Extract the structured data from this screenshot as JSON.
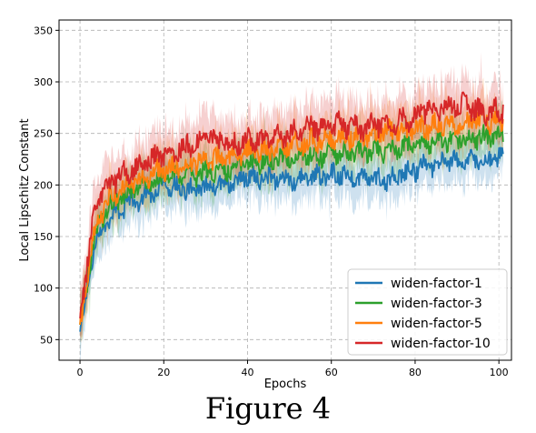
{
  "caption": "Figure 4",
  "chart_data": {
    "type": "line",
    "xlabel": "Epochs",
    "ylabel": "Local Lipschitz Constant",
    "xlim": [
      -5,
      103
    ],
    "ylim": [
      30,
      360
    ],
    "xticks": [
      0,
      20,
      40,
      60,
      80,
      100
    ],
    "yticks": [
      50,
      100,
      150,
      200,
      250,
      300,
      350
    ],
    "grid": true,
    "legend_position": "lower-right",
    "series": [
      {
        "name": "widen-factor-1",
        "color": "#1f77b4",
        "x": [
          0,
          1,
          2,
          3,
          4,
          5,
          6,
          8,
          10,
          12,
          15,
          18,
          20,
          22,
          25,
          28,
          30,
          32,
          35,
          38,
          40,
          42,
          45,
          48,
          50,
          52,
          55,
          58,
          60,
          62,
          65,
          68,
          70,
          72,
          75,
          78,
          80,
          82,
          85,
          88,
          90,
          92,
          95,
          98,
          100,
          101
        ],
        "y": [
          55,
          80,
          105,
          130,
          145,
          155,
          162,
          172,
          178,
          182,
          188,
          195,
          200,
          200,
          197,
          196,
          198,
          200,
          203,
          205,
          208,
          207,
          206,
          205,
          204,
          205,
          208,
          210,
          211,
          210,
          208,
          207,
          206,
          205,
          208,
          212,
          215,
          218,
          220,
          222,
          223,
          224,
          224,
          225,
          226,
          224
        ],
        "noise": 12
      },
      {
        "name": "widen-factor-3",
        "color": "#2ca02c",
        "x": [
          0,
          1,
          2,
          3,
          4,
          5,
          6,
          8,
          10,
          12,
          15,
          18,
          20,
          22,
          25,
          28,
          30,
          32,
          35,
          38,
          40,
          42,
          45,
          48,
          50,
          52,
          55,
          58,
          60,
          62,
          65,
          68,
          70,
          72,
          75,
          78,
          80,
          82,
          85,
          88,
          90,
          92,
          95,
          98,
          100,
          101
        ],
        "y": [
          60,
          85,
          115,
          140,
          155,
          165,
          172,
          182,
          188,
          192,
          198,
          203,
          207,
          208,
          208,
          210,
          212,
          213,
          215,
          217,
          220,
          222,
          224,
          225,
          226,
          227,
          228,
          229,
          230,
          230,
          231,
          232,
          232,
          233,
          235,
          237,
          238,
          240,
          242,
          243,
          244,
          245,
          246,
          247,
          248,
          247
        ],
        "noise": 12
      },
      {
        "name": "widen-factor-5",
        "color": "#ff7f0e",
        "x": [
          0,
          1,
          2,
          3,
          4,
          5,
          6,
          8,
          10,
          12,
          15,
          18,
          20,
          22,
          25,
          28,
          30,
          32,
          35,
          38,
          40,
          42,
          45,
          48,
          50,
          52,
          55,
          58,
          60,
          62,
          65,
          68,
          70,
          72,
          75,
          78,
          80,
          82,
          85,
          88,
          90,
          92,
          95,
          98,
          100,
          101
        ],
        "y": [
          65,
          90,
          120,
          145,
          160,
          172,
          180,
          190,
          196,
          200,
          206,
          212,
          216,
          218,
          220,
          222,
          224,
          226,
          228,
          230,
          232,
          233,
          235,
          236,
          238,
          240,
          242,
          244,
          245,
          246,
          247,
          248,
          250,
          251,
          252,
          253,
          255,
          256,
          257,
          258,
          259,
          260,
          261,
          262,
          262,
          260
        ],
        "noise": 13
      },
      {
        "name": "widen-factor-10",
        "color": "#d62728",
        "x": [
          0,
          1,
          2,
          3,
          4,
          5,
          6,
          8,
          10,
          12,
          15,
          18,
          20,
          22,
          25,
          28,
          30,
          32,
          35,
          38,
          40,
          42,
          45,
          48,
          50,
          52,
          55,
          58,
          60,
          62,
          65,
          68,
          70,
          72,
          75,
          78,
          80,
          82,
          85,
          88,
          90,
          92,
          95,
          98,
          100,
          101
        ],
        "y": [
          78,
          100,
          132,
          160,
          178,
          190,
          196,
          204,
          210,
          214,
          220,
          226,
          230,
          232,
          236,
          242,
          246,
          245,
          242,
          240,
          242,
          244,
          246,
          248,
          250,
          252,
          255,
          257,
          258,
          258,
          257,
          256,
          258,
          260,
          262,
          264,
          268,
          272,
          275,
          277,
          278,
          276,
          272,
          270,
          272,
          275
        ],
        "noise": 14
      }
    ]
  }
}
